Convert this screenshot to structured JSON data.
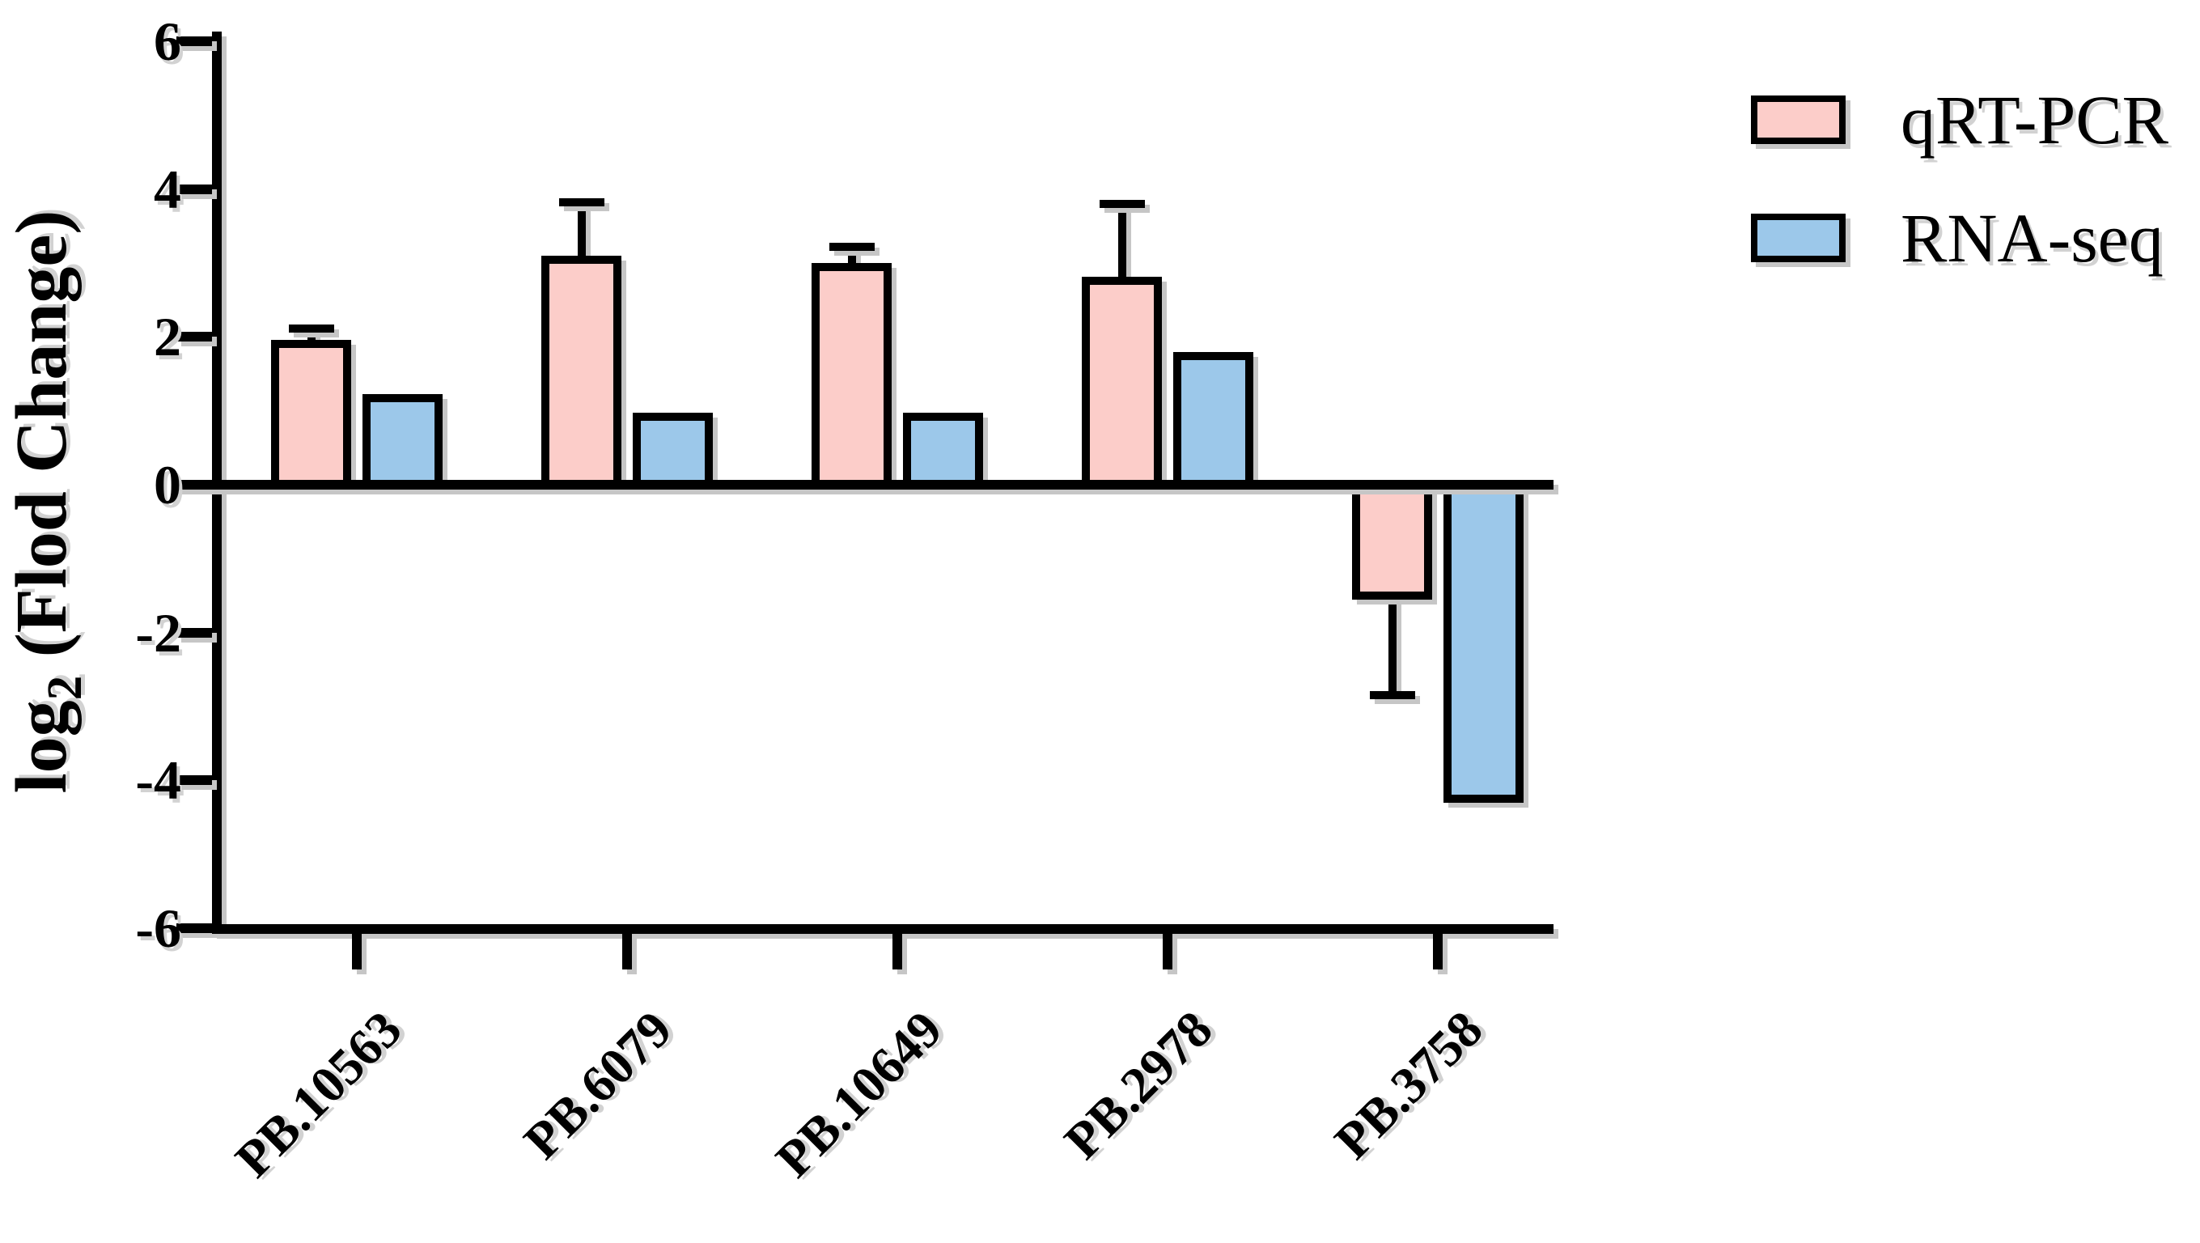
{
  "chart_data": {
    "type": "bar",
    "title": "",
    "ylabel": {
      "pre": "log",
      "sub": "2",
      "post": " (Flod Change)"
    },
    "xlabel": "",
    "ylim": [
      -6,
      6
    ],
    "yticks": [
      6,
      4,
      2,
      0,
      -2,
      -4,
      -6
    ],
    "grid": false,
    "legend_position": "top-right",
    "categories": [
      "PB.10563",
      "PB.6079",
      "PB.10649",
      "PB.2978",
      "PB.3758"
    ],
    "series": [
      {
        "name": "qRT-PCR",
        "color": "#FCCDC9",
        "border_color": "#000000",
        "values": [
          1.96,
          3.1,
          3.0,
          2.82,
          -1.55
        ],
        "errors": [
          0.15,
          0.72,
          0.22,
          0.98,
          1.3
        ]
      },
      {
        "name": "RNA-seq",
        "color": "#9CC8EA",
        "border_color": "#000000",
        "values": [
          1.23,
          0.97,
          0.97,
          1.8,
          -4.3
        ],
        "errors": [
          0,
          0,
          0,
          0,
          0
        ]
      }
    ],
    "axis_color": "#000000",
    "shadow_color": "#c6c6c6"
  }
}
